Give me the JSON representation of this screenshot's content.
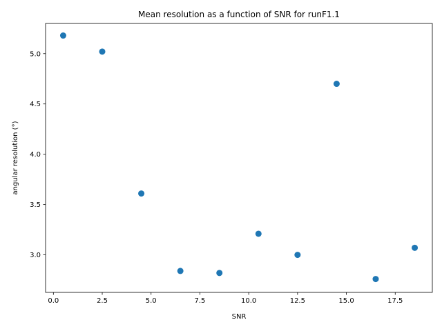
{
  "chart_data": {
    "type": "scatter",
    "title": "Mean resolution as a function of SNR for runF1.1",
    "xlabel": "SNR",
    "ylabel": "angular resolution (°)",
    "xlim": [
      -0.4,
      19.4
    ],
    "ylim": [
      2.627,
      5.3
    ],
    "x_ticks": [
      0.0,
      2.5,
      5.0,
      7.5,
      10.0,
      12.5,
      15.0,
      17.5
    ],
    "x_tick_labels": [
      "0.0",
      "2.5",
      "5.0",
      "7.5",
      "10.0",
      "12.5",
      "15.0",
      "17.5"
    ],
    "y_ticks": [
      3.0,
      3.5,
      4.0,
      4.5,
      5.0
    ],
    "y_tick_labels": [
      "3.0",
      "3.5",
      "4.0",
      "4.5",
      "5.0"
    ],
    "grid": false,
    "marker_color": "#1f77b4",
    "x": [
      0.5,
      2.5,
      4.5,
      6.5,
      8.5,
      10.5,
      12.5,
      14.5,
      16.5,
      18.5
    ],
    "y": [
      5.18,
      5.02,
      3.61,
      2.84,
      2.82,
      3.21,
      3.0,
      4.7,
      2.76,
      3.07
    ]
  }
}
